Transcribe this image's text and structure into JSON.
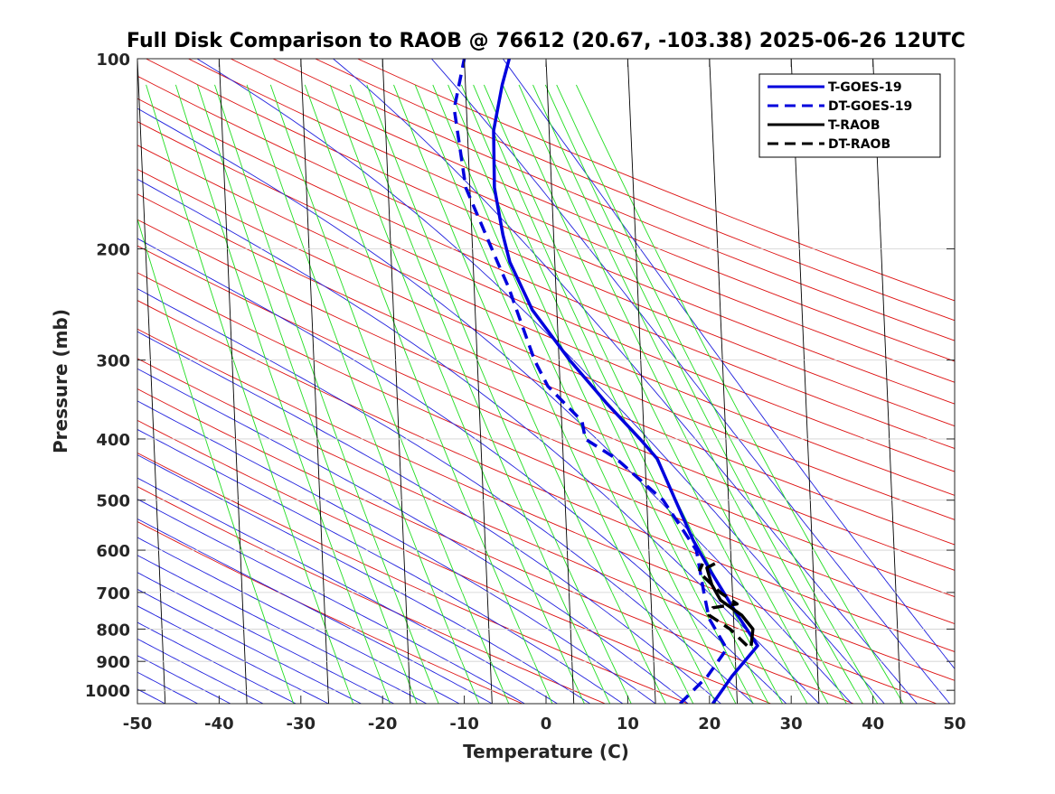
{
  "chart_data": {
    "type": "line",
    "title": "Full Disk Comparison to RAOB @ 76612 (20.67, -103.38) 2025-06-26 12UTC",
    "xlabel": "Temperature (C)",
    "ylabel": "Pressure (mb)",
    "xlim": [
      -50,
      50
    ],
    "ylim": [
      1050,
      100
    ],
    "y_scale": "log",
    "y_reversed": true,
    "x_ticks": [
      -50,
      -40,
      -30,
      -20,
      -10,
      0,
      10,
      20,
      30,
      40,
      50
    ],
    "y_ticks": [
      100,
      200,
      300,
      400,
      500,
      600,
      700,
      800,
      900,
      1000
    ],
    "grid": true,
    "legend_position": "top-right",
    "series": [
      {
        "name": "T-GOES-19",
        "color": "#0000dd",
        "style": "solid",
        "points": [
          {
            "t": 17,
            "p": 1050
          },
          {
            "t": 19.5,
            "p": 950
          },
          {
            "t": 22.8,
            "p": 850
          },
          {
            "t": 20.5,
            "p": 760
          },
          {
            "t": 17.5,
            "p": 650
          },
          {
            "t": 15.5,
            "p": 580
          },
          {
            "t": 13.5,
            "p": 500
          },
          {
            "t": 11.5,
            "p": 430
          },
          {
            "t": 9.5,
            "p": 400
          },
          {
            "t": 5.5,
            "p": 350
          },
          {
            "t": 1.3,
            "p": 300
          },
          {
            "t": -3,
            "p": 250
          },
          {
            "t": -5.5,
            "p": 210
          },
          {
            "t": -6.2,
            "p": 190
          },
          {
            "t": -7,
            "p": 160
          },
          {
            "t": -6.8,
            "p": 130
          },
          {
            "t": -5.5,
            "p": 110
          },
          {
            "t": -4.5,
            "p": 100
          }
        ]
      },
      {
        "name": "DT-GOES-19",
        "color": "#0000dd",
        "style": "dashed",
        "points": [
          {
            "t": 13,
            "p": 1050
          },
          {
            "t": 16.5,
            "p": 950
          },
          {
            "t": 19,
            "p": 860
          },
          {
            "t": 17,
            "p": 770
          },
          {
            "t": 16.5,
            "p": 700
          },
          {
            "t": 15.8,
            "p": 600
          },
          {
            "t": 12,
            "p": 500
          },
          {
            "t": 6.5,
            "p": 430
          },
          {
            "t": 2.8,
            "p": 400
          },
          {
            "t": 2.5,
            "p": 375
          },
          {
            "t": -1.5,
            "p": 330
          },
          {
            "t": -3,
            "p": 300
          },
          {
            "t": -5.8,
            "p": 230
          },
          {
            "t": -7,
            "p": 210
          },
          {
            "t": -10.5,
            "p": 160
          },
          {
            "t": -11.5,
            "p": 120
          },
          {
            "t": -10,
            "p": 100
          }
        ]
      },
      {
        "name": "T-RAOB",
        "color": "#000000",
        "style": "solid",
        "points": [
          {
            "t": 22,
            "p": 850
          },
          {
            "t": 22.3,
            "p": 800
          },
          {
            "t": 21,
            "p": 760
          },
          {
            "t": 18.5,
            "p": 720
          },
          {
            "t": 17.5,
            "p": 680
          },
          {
            "t": 17,
            "p": 640
          },
          {
            "t": 18,
            "p": 630
          }
        ]
      },
      {
        "name": "DT-RAOB",
        "color": "#000000",
        "style": "dashed",
        "points": [
          {
            "t": 21.5,
            "p": 850
          },
          {
            "t": 19.5,
            "p": 800
          },
          {
            "t": 17,
            "p": 760
          },
          {
            "t": 17.5,
            "p": 740
          },
          {
            "t": 20.5,
            "p": 730
          },
          {
            "t": 18.5,
            "p": 700
          },
          {
            "t": 16,
            "p": 650
          },
          {
            "t": 16.5,
            "p": 630
          }
        ]
      }
    ]
  }
}
